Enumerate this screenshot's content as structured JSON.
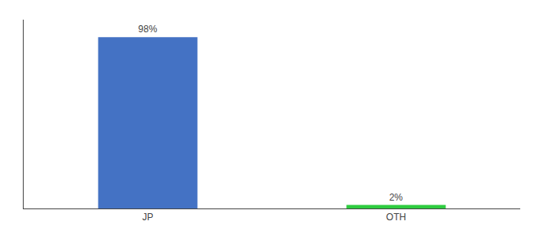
{
  "chart_data": {
    "type": "bar",
    "categories": [
      "JP",
      "OTH"
    ],
    "values": [
      98,
      2
    ],
    "value_labels": [
      "98%",
      "2%"
    ],
    "colors": [
      "#4472c4",
      "#2ecc40"
    ],
    "ylim": [
      0,
      108
    ],
    "data_labels": true,
    "tick_labels": "x",
    "grid": false
  }
}
